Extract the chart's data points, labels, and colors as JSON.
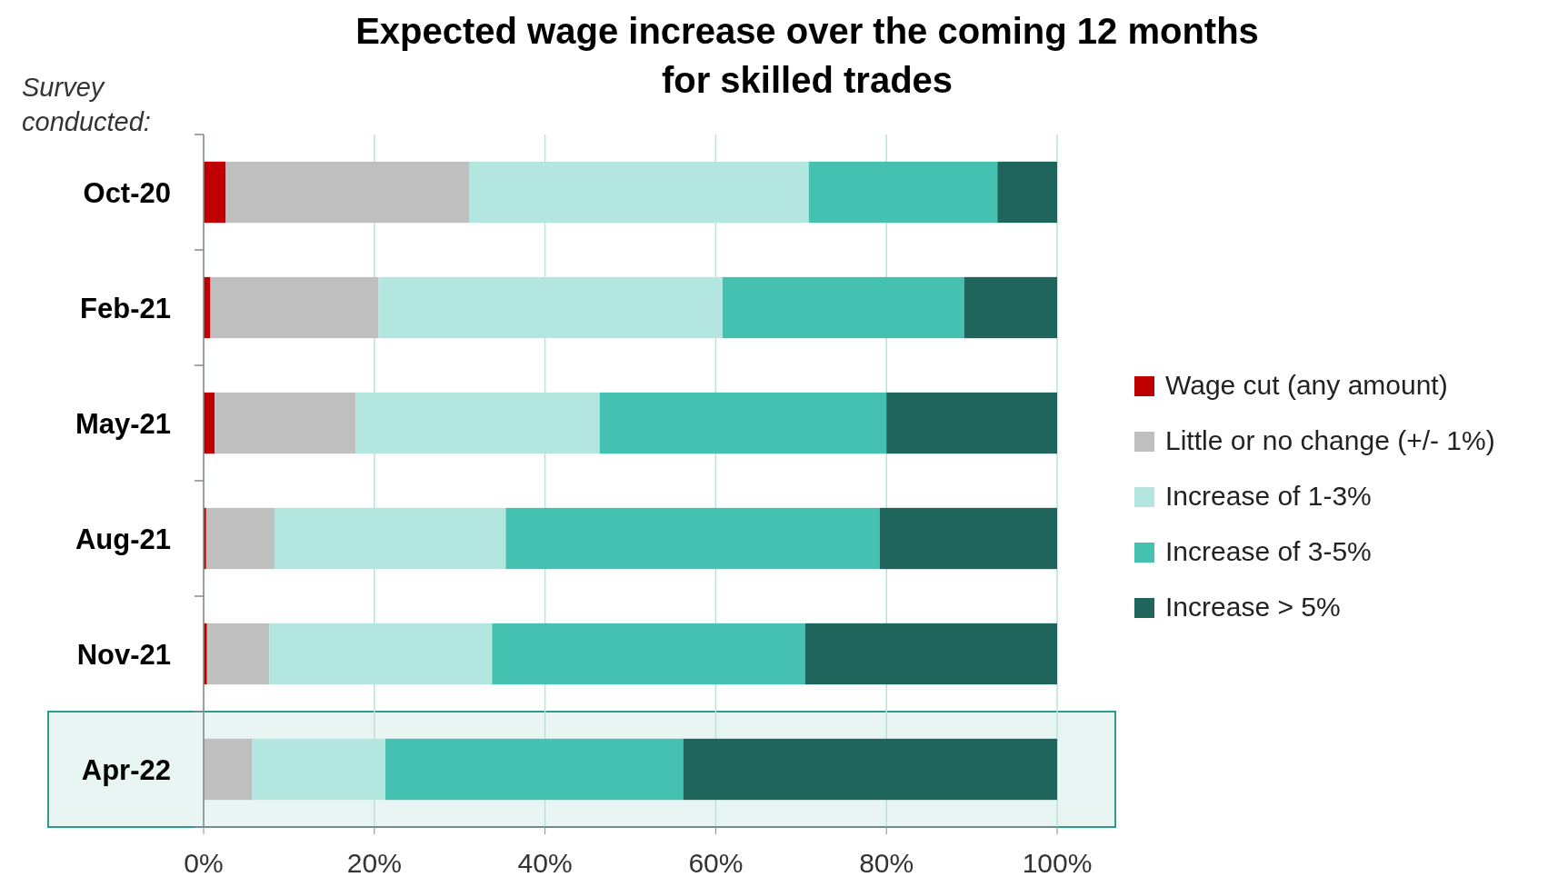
{
  "chart_data": {
    "type": "bar",
    "orientation": "horizontal",
    "stacked": true,
    "title": "Expected wage increase over the coming 12 months\nfor skilled trades",
    "ylabel": "Survey\nconducted:",
    "categories": [
      "Oct-20",
      "Feb-21",
      "May-21",
      "Aug-21",
      "Nov-21",
      "Apr-22"
    ],
    "series": [
      {
        "name": "Wage cut (any amount)",
        "color": "#c00000",
        "values": [
          2.6,
          0.8,
          1.3,
          0.3,
          0.4,
          0
        ]
      },
      {
        "name": "Little or no change (+/- 1%)",
        "color": "#bfbfbf",
        "values": [
          28.5,
          19.7,
          16.5,
          8.0,
          7.3,
          5.7
        ]
      },
      {
        "name": "Increase of 1-3%",
        "color": "#b3e6df",
        "values": [
          39.8,
          40.3,
          28.6,
          27.1,
          26.1,
          15.6
        ]
      },
      {
        "name": "Increase of 3-5%",
        "color": "#45c1b1",
        "values": [
          22.1,
          28.3,
          33.6,
          43.8,
          36.7,
          34.9
        ]
      },
      {
        "name": "Increase > 5%",
        "color": "#20655b",
        "values": [
          7.0,
          10.9,
          20.0,
          20.8,
          29.5,
          43.8
        ]
      }
    ],
    "xlim": [
      0,
      100
    ],
    "xticks": [
      {
        "value": 0,
        "label": "0%"
      },
      {
        "value": 20,
        "label": "20%"
      },
      {
        "value": 40,
        "label": "40%"
      },
      {
        "value": 60,
        "label": "60%"
      },
      {
        "value": 80,
        "label": "80%"
      },
      {
        "value": 100,
        "label": "100%"
      }
    ],
    "grid": "x",
    "legend": "right",
    "bands": [
      {
        "axis": "y",
        "from": "Apr-22",
        "to": "Apr-22",
        "color": "#e8f5f3"
      }
    ]
  }
}
